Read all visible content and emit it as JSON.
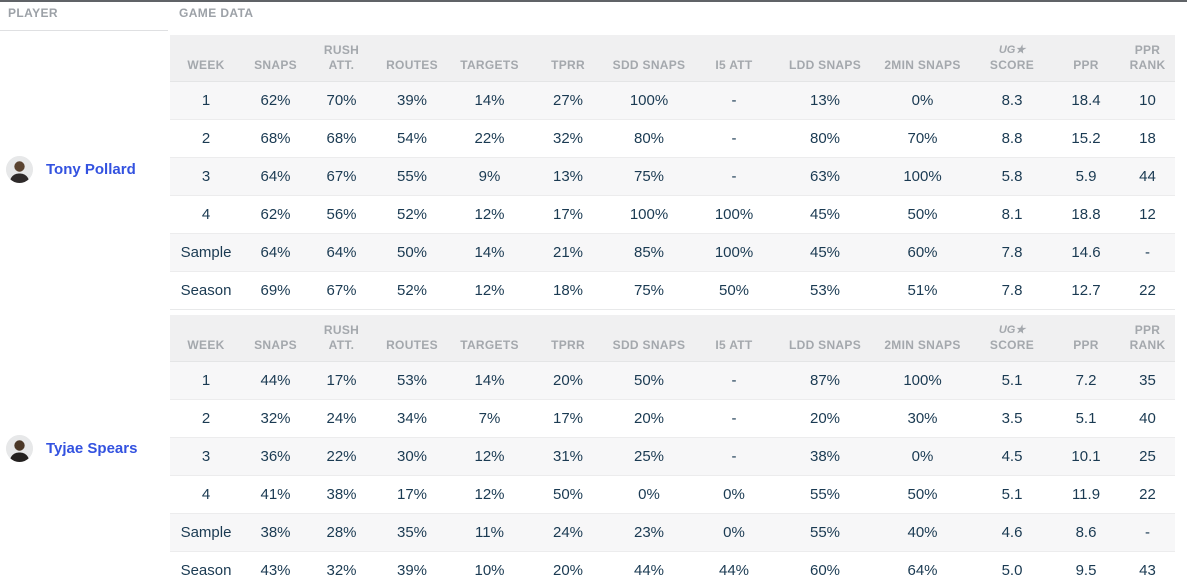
{
  "page": {
    "player_column_label": "PLAYER",
    "game_data_label": "GAME DATA"
  },
  "colors": {
    "accent_player_link": "#3352e0",
    "data_text": "#1a3a52",
    "header_text": "#a4a8ad",
    "header_band": "#f0f0f1",
    "row_stripe": "#f7f7f8"
  },
  "columns": [
    {
      "id": "week",
      "lines": [
        "WEEK"
      ]
    },
    {
      "id": "snaps",
      "lines": [
        "SNAPS"
      ]
    },
    {
      "id": "rush-att",
      "lines": [
        "RUSH",
        "ATT."
      ]
    },
    {
      "id": "routes",
      "lines": [
        "ROUTES"
      ]
    },
    {
      "id": "targets",
      "lines": [
        "TARGETS"
      ]
    },
    {
      "id": "tprr",
      "lines": [
        "TPRR"
      ]
    },
    {
      "id": "sdd-snaps",
      "lines": [
        "SDD SNAPS"
      ]
    },
    {
      "id": "i5-att",
      "lines": [
        "I5 ATT"
      ]
    },
    {
      "id": "ldd-snaps",
      "lines": [
        "LDD SNAPS"
      ]
    },
    {
      "id": "2min-snaps",
      "lines": [
        "2MIN SNAPS"
      ]
    },
    {
      "id": "ug-score",
      "lines": [
        "UG★",
        "SCORE"
      ],
      "logo_line": 0
    },
    {
      "id": "ppr",
      "lines": [
        "PPR"
      ]
    },
    {
      "id": "ppr-rank",
      "lines": [
        "PPR",
        "RANK"
      ]
    }
  ],
  "players": [
    {
      "name": "Tony Pollard",
      "rows": [
        [
          "1",
          "62%",
          "70%",
          "39%",
          "14%",
          "27%",
          "100%",
          "-",
          "13%",
          "0%",
          "8.3",
          "18.4",
          "10"
        ],
        [
          "2",
          "68%",
          "68%",
          "54%",
          "22%",
          "32%",
          "80%",
          "-",
          "80%",
          "70%",
          "8.8",
          "15.2",
          "18"
        ],
        [
          "3",
          "64%",
          "67%",
          "55%",
          "9%",
          "13%",
          "75%",
          "-",
          "63%",
          "100%",
          "5.8",
          "5.9",
          "44"
        ],
        [
          "4",
          "62%",
          "56%",
          "52%",
          "12%",
          "17%",
          "100%",
          "100%",
          "45%",
          "50%",
          "8.1",
          "18.8",
          "12"
        ],
        [
          "Sample",
          "64%",
          "64%",
          "50%",
          "14%",
          "21%",
          "85%",
          "100%",
          "45%",
          "60%",
          "7.8",
          "14.6",
          "-"
        ],
        [
          "Season",
          "69%",
          "67%",
          "52%",
          "12%",
          "18%",
          "75%",
          "50%",
          "53%",
          "51%",
          "7.8",
          "12.7",
          "22"
        ]
      ]
    },
    {
      "name": "Tyjae Spears",
      "rows": [
        [
          "1",
          "44%",
          "17%",
          "53%",
          "14%",
          "20%",
          "50%",
          "-",
          "87%",
          "100%",
          "5.1",
          "7.2",
          "35"
        ],
        [
          "2",
          "32%",
          "24%",
          "34%",
          "7%",
          "17%",
          "20%",
          "-",
          "20%",
          "30%",
          "3.5",
          "5.1",
          "40"
        ],
        [
          "3",
          "36%",
          "22%",
          "30%",
          "12%",
          "31%",
          "25%",
          "-",
          "38%",
          "0%",
          "4.5",
          "10.1",
          "25"
        ],
        [
          "4",
          "41%",
          "38%",
          "17%",
          "12%",
          "50%",
          "0%",
          "0%",
          "55%",
          "50%",
          "5.1",
          "11.9",
          "22"
        ],
        [
          "Sample",
          "38%",
          "28%",
          "35%",
          "11%",
          "24%",
          "23%",
          "0%",
          "55%",
          "40%",
          "4.6",
          "8.6",
          "-"
        ],
        [
          "Season",
          "43%",
          "32%",
          "39%",
          "10%",
          "20%",
          "44%",
          "44%",
          "60%",
          "64%",
          "5.0",
          "9.5",
          "43"
        ]
      ]
    }
  ]
}
